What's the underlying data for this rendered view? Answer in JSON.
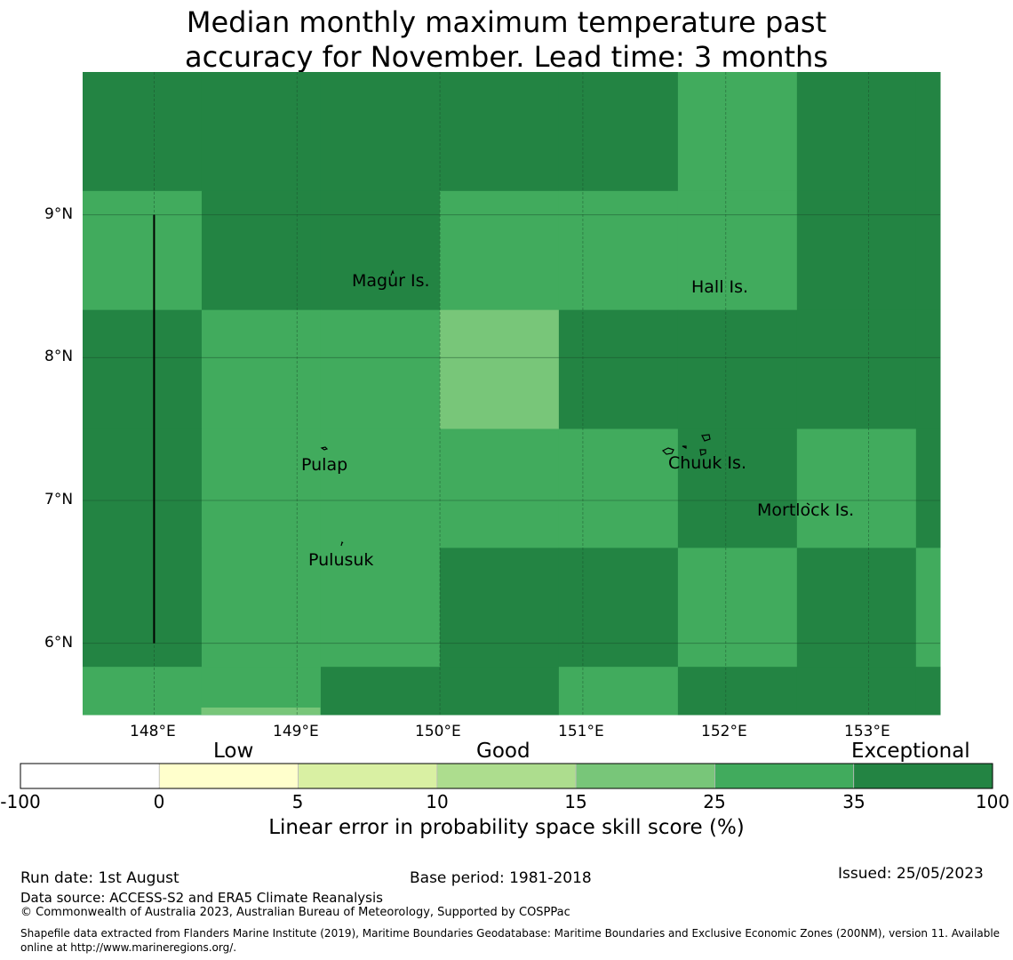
{
  "title": {
    "line1": "Median monthly maximum temperature past",
    "line2": "accuracy for November. Lead time: 3 months"
  },
  "map": {
    "lon_range": [
      147.5,
      153.5
    ],
    "lat_range": [
      5.5,
      10.0
    ],
    "lon_ticks": [
      "148°E",
      "149°E",
      "150°E",
      "151°E",
      "152°E",
      "153°E"
    ],
    "lat_ticks": [
      "9°N",
      "8°N",
      "7°N",
      "6°N"
    ],
    "grid_cell_deg": 0.833,
    "grid_origin": {
      "lon": 147.5,
      "lat": 10.0
    },
    "colors": {
      "c15": "#78c679",
      "c25": "#41ab5d",
      "c35": "#238443"
    },
    "skill_classes_by_row_north_to_south": [
      [
        "c35",
        "c35",
        "c35",
        "c35",
        "c35",
        "c25",
        "c35",
        "c35"
      ],
      [
        "c25",
        "c35",
        "c35",
        "c25",
        "c25",
        "c25",
        "c35",
        "c35"
      ],
      [
        "c35",
        "c25",
        "c25",
        "c15",
        "c35",
        "c35",
        "c35",
        "c35"
      ],
      [
        "c35",
        "c25",
        "c25",
        "c25",
        "c25",
        "c35",
        "c25",
        "c35"
      ],
      [
        "c35",
        "c25",
        "c25",
        "c35",
        "c35",
        "c25",
        "c35",
        "c25"
      ],
      [
        "c25",
        "c25",
        "c35",
        "c35",
        "c25",
        "c35",
        "c35",
        "c35"
      ],
      [
        "c25",
        "c25",
        "c25",
        "c25",
        "c25",
        "c25",
        "c35",
        "c25"
      ],
      [
        "c25",
        "c25",
        "c25",
        "c25",
        "c25",
        "c25",
        "c35",
        "c25"
      ]
    ],
    "extra_cells": [
      {
        "lon": 148.33,
        "lat": 5.5,
        "class": "c15",
        "note": "thin strip at bottom edge"
      }
    ],
    "places": [
      {
        "name": "Magur Is."
      },
      {
        "name": "Hall Is."
      },
      {
        "name": "Pulap"
      },
      {
        "name": "Chuuk Is."
      },
      {
        "name": "Mortlock Is."
      },
      {
        "name": "Pulusuk"
      }
    ],
    "boundary_line": {
      "lon": 148.0,
      "lat_from": 6.0,
      "lat_to": 9.0
    }
  },
  "colorbar": {
    "categories": [
      "Low",
      "Good",
      "Exceptional"
    ],
    "ticks": [
      "-100",
      "0",
      "5",
      "10",
      "15",
      "25",
      "35",
      "100"
    ],
    "colors": [
      "#ffffff",
      "#ffffcc",
      "#d9f0a3",
      "#addd8e",
      "#78c679",
      "#41ab5d",
      "#238443"
    ],
    "label": "Linear error in probability space skill score (%)"
  },
  "footer": {
    "run_date": "Run date: 1st August",
    "base_period": "Base period: 1981-2018",
    "issued": "Issued: 25/05/2023",
    "data_source": "Data source: ACCESS-S2 and ERA5 Climate Reanalysis",
    "copyright": "© Commonwealth of Australia 2023, Australian Bureau of Meteorology, Supported by COSPPac",
    "shapefile": "Shapefile data extracted from Flanders Marine Institute (2019), Maritime Boundaries Geodatabase: Maritime Boundaries and Exclusive Economic Zones (200NM), version 11. Available online at http://www.marineregions.org/."
  }
}
